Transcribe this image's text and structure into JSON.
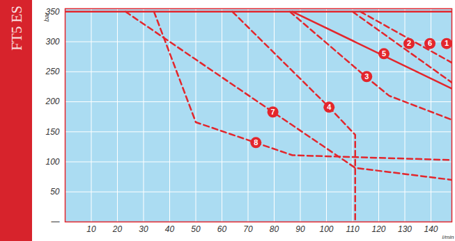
{
  "chart_data": {
    "type": "line",
    "title": "FT5 ES",
    "x_label": "l/min",
    "y_label": "bar",
    "xlim": [
      0,
      148
    ],
    "ylim": [
      0,
      355
    ],
    "xticks": [
      10,
      20,
      30,
      40,
      50,
      60,
      70,
      80,
      90,
      100,
      110,
      120,
      130,
      140
    ],
    "yticks": [
      {
        "value": 0,
        "label": "—"
      },
      50,
      100,
      150,
      200,
      250,
      300,
      350
    ],
    "grid": true,
    "series": [
      {
        "name": "1",
        "color": "#e3262c",
        "line_style": "solid",
        "x": [
          0,
          148
        ],
        "values": [
          350,
          350
        ],
        "label_at": [
          146,
          297
        ]
      },
      {
        "name": "2",
        "color": "#e3262c",
        "line_style": "dashed",
        "x": [
          110,
          148
        ],
        "values": [
          350,
          232
        ],
        "label_at": [
          131.6,
          297
        ]
      },
      {
        "name": "3",
        "color": "#e3262c",
        "line_style": "dashed",
        "x": [
          86,
          115,
          124,
          148
        ],
        "values": [
          350,
          242,
          210,
          170
        ],
        "label_at": [
          115.4,
          242
        ]
      },
      {
        "name": "4",
        "color": "#e3262c",
        "line_style": "dashed",
        "x": [
          64,
          101,
          111,
          111
        ],
        "values": [
          350,
          191,
          145,
          0
        ],
        "label_at": [
          101,
          191
        ]
      },
      {
        "name": "5",
        "color": "#e3262c",
        "line_style": "solid",
        "x": [
          87,
          148
        ],
        "values": [
          350,
          222
        ],
        "label_at": [
          122,
          280
        ]
      },
      {
        "name": "6",
        "color": "#e3262c",
        "line_style": "dashed",
        "x": [
          113,
          148
        ],
        "values": [
          350,
          265
        ],
        "label_at": [
          139.6,
          297
        ]
      },
      {
        "name": "7",
        "color": "#e3262c",
        "line_style": "dashed",
        "x": [
          23.1,
          79.5,
          111,
          148
        ],
        "values": [
          350,
          183,
          90,
          70
        ],
        "label_at": [
          79.5,
          183
        ]
      },
      {
        "name": "8",
        "color": "#e3262c",
        "line_style": "dashed",
        "x": [
          34,
          50,
          87,
          148
        ],
        "values": [
          350,
          166,
          111,
          103
        ],
        "label_at": [
          73,
          132
        ]
      }
    ]
  }
}
